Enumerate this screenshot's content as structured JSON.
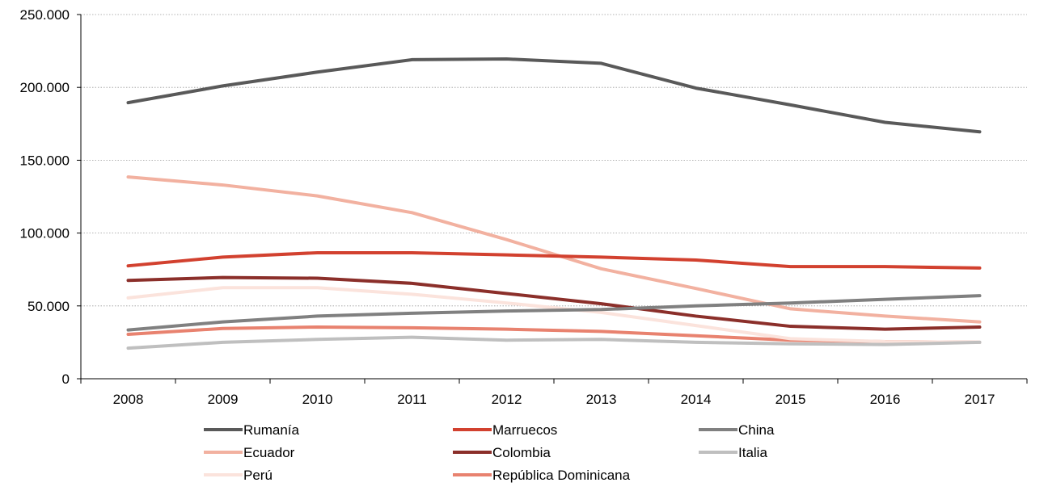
{
  "chart_data": {
    "type": "line",
    "title": "",
    "xlabel": "",
    "ylabel": "",
    "categories": [
      "2008",
      "2009",
      "2010",
      "2011",
      "2012",
      "2013",
      "2014",
      "2015",
      "2016",
      "2017"
    ],
    "ylim": [
      0,
      250000
    ],
    "yticks": [
      0,
      50000,
      100000,
      150000,
      200000,
      250000
    ],
    "ytick_labels": [
      "0",
      "50.000",
      "100.000",
      "150.000",
      "200.000",
      "250.000"
    ],
    "grid": "horizontal dotted",
    "legend_position": "bottom",
    "series": [
      {
        "name": "Rumanía",
        "color": "#595959",
        "values": [
          189500,
          201000,
          210500,
          219000,
          219500,
          216500,
          199500,
          188000,
          176000,
          169500
        ]
      },
      {
        "name": "Marruecos",
        "color": "#d2412f",
        "values": [
          77500,
          83500,
          86500,
          86500,
          85000,
          83500,
          81500,
          77000,
          77000,
          76000
        ]
      },
      {
        "name": "China",
        "color": "#808080",
        "values": [
          33500,
          39000,
          43000,
          45000,
          46500,
          47500,
          50000,
          52000,
          54500,
          57000
        ]
      },
      {
        "name": "Ecuador",
        "color": "#f2b1a0",
        "values": [
          138500,
          133000,
          125500,
          114000,
          95500,
          75500,
          62000,
          48000,
          43000,
          39000
        ]
      },
      {
        "name": "Colombia",
        "color": "#8b2f2a",
        "values": [
          67500,
          69500,
          69000,
          65500,
          58500,
          51500,
          43000,
          36000,
          34000,
          35500
        ]
      },
      {
        "name": "Italia",
        "color": "#bfbfbf",
        "values": [
          21000,
          25000,
          27000,
          28500,
          26500,
          27000,
          25000,
          24000,
          23500,
          25000
        ]
      },
      {
        "name": "Perú",
        "color": "#fbe3dc",
        "values": [
          55500,
          62500,
          62500,
          58000,
          52000,
          45500,
          36500,
          27500,
          25500,
          25000
        ]
      },
      {
        "name": "República Dominicana",
        "color": "#e8826f",
        "values": [
          30500,
          34500,
          35500,
          35000,
          34000,
          32500,
          29500,
          26500,
          25500,
          25000
        ]
      }
    ]
  }
}
